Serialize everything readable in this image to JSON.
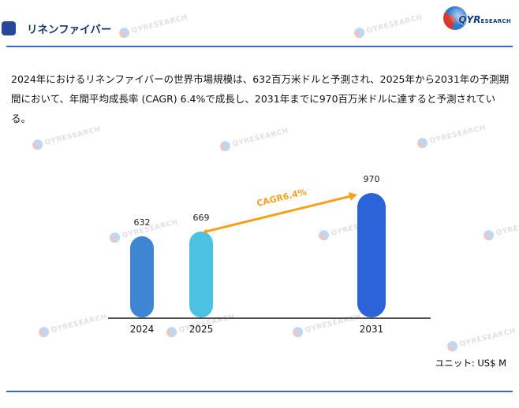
{
  "header": {
    "title": "リネンファイバー"
  },
  "logo": {
    "bold": "QYR",
    "rest": "ESEARCH"
  },
  "watermark_text": "QYRESEARCH",
  "paragraph": "2024年におけるリネンファイバーの世界市場規模は、632百万米ドルと予測され、2025年から2031年の予測期間において、年間平均成長率 (CAGR) 6.4%で成長し、2031年までに970百万米ドルに達すると予測されている。",
  "chart_data": {
    "type": "bar",
    "title": "",
    "xlabel": "",
    "ylabel": "",
    "categories": [
      "2024",
      "2025",
      "2031"
    ],
    "values": [
      632,
      669,
      970
    ],
    "bar_colors": [
      "#3f86d2",
      "#4cc2e2",
      "#2b63d9"
    ],
    "value_labels_shown": true,
    "grid": false,
    "legend": false,
    "ylim": [
      0,
      1000
    ],
    "annotation": {
      "label": "CAGR6.4%",
      "from": "2025",
      "to": "2031",
      "color": "#f8a01c"
    },
    "unit_label": "ユニット: US$ M"
  },
  "colors": {
    "accent_bar": "#27479a",
    "title_text": "#16366b",
    "divider": "#3a66c0",
    "arrow": "#f8a01c"
  }
}
